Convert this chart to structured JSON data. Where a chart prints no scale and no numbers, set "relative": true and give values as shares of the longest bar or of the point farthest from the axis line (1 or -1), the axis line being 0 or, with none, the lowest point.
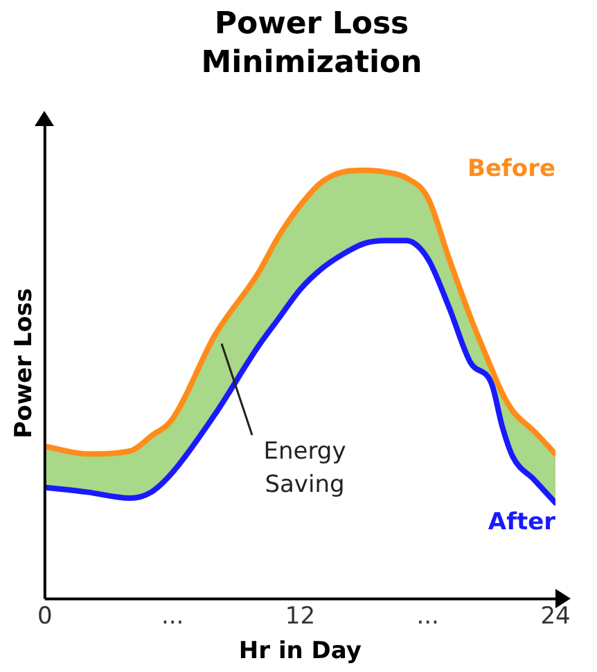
{
  "chart_data": {
    "type": "line",
    "title": "Power Loss Minimization",
    "xlabel": "Hr in Day",
    "ylabel": "Power Loss",
    "relative": true,
    "legend": false,
    "marker": "none",
    "grid": false,
    "xlim": [
      0,
      24
    ],
    "xticks": [
      0,
      {
        "value": 6,
        "label": "..."
      },
      12,
      {
        "value": 18,
        "label": "..."
      },
      24
    ],
    "x": [
      0,
      2,
      4,
      5,
      6,
      8,
      10,
      11,
      12,
      13,
      14,
      15,
      16,
      17,
      18,
      19,
      20,
      21,
      21.5,
      22,
      23,
      24
    ],
    "series": [
      {
        "name": "Before",
        "color": "#ff8c1a",
        "values": [
          0.356,
          0.338,
          0.345,
          0.38,
          0.42,
          0.616,
          0.758,
          0.847,
          0.918,
          0.972,
          0.996,
          1,
          0.996,
          0.982,
          0.936,
          0.794,
          0.658,
          0.537,
          0.48,
          0.438,
          0.391,
          0.338
        ],
        "lower": [
          0.26,
          0.249,
          0.235,
          0.249,
          0.295,
          0.431,
          0.587,
          0.655,
          0.722,
          0.77,
          0.804,
          0.829,
          0.836,
          0.836,
          0.794,
          0.68,
          0.552,
          0.502,
          0.402,
          0.331,
          0.278,
          0.224
        ],
        "upper": [
          0.356,
          0.338,
          0.345,
          0.38,
          0.42,
          0.616,
          0.758,
          0.847,
          0.918,
          0.972,
          0.996,
          1,
          0.996,
          0.982,
          0.936,
          0.794,
          0.658,
          0.537,
          0.48,
          0.438,
          0.391,
          0.338
        ]
      },
      {
        "name": "After",
        "color": "#1a1aff",
        "values": [
          0.26,
          0.249,
          0.235,
          0.249,
          0.295,
          0.431,
          0.587,
          0.655,
          0.722,
          0.77,
          0.804,
          0.829,
          0.836,
          0.836,
          0.794,
          0.68,
          0.552,
          0.502,
          0.402,
          0.331,
          0.278,
          0.224
        ]
      }
    ],
    "annotations": [
      "Energy Saving"
    ]
  }
}
